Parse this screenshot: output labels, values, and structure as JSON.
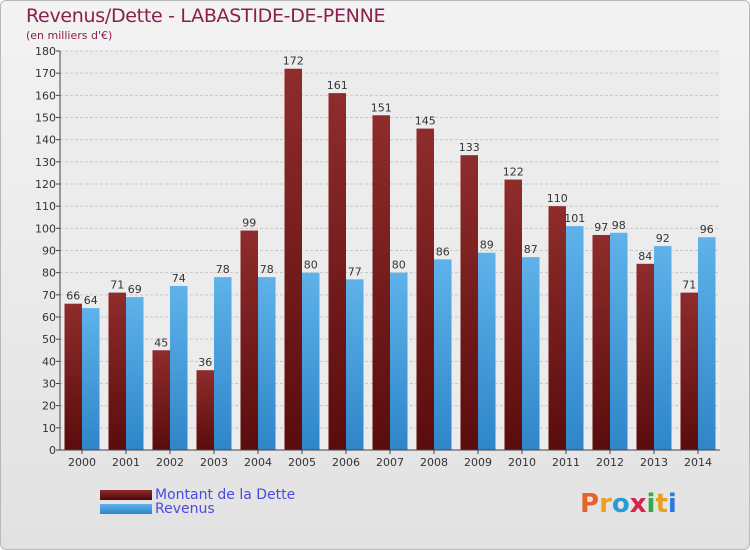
{
  "chart_data": {
    "type": "bar",
    "title": "Revenus/Dette - LABASTIDE-DE-PENNE",
    "subtitle": "(en milliers d'€)",
    "categories": [
      "2000",
      "2001",
      "2002",
      "2003",
      "2004",
      "2005",
      "2006",
      "2007",
      "2008",
      "2009",
      "2010",
      "2011",
      "2012",
      "2013",
      "2014"
    ],
    "series": [
      {
        "name": "Montant de la Dette",
        "color": "#7a1f1f",
        "values": [
          66,
          71,
          45,
          36,
          99,
          172,
          161,
          151,
          145,
          133,
          122,
          110,
          97,
          84,
          71
        ]
      },
      {
        "name": "Revenus",
        "color": "#4aa3e0",
        "values": [
          64,
          69,
          74,
          78,
          78,
          80,
          77,
          80,
          86,
          89,
          87,
          101,
          98,
          92,
          96
        ]
      }
    ],
    "ylim": [
      0,
      180
    ],
    "yticks": [
      0,
      10,
      20,
      30,
      40,
      50,
      60,
      70,
      80,
      90,
      100,
      110,
      120,
      130,
      140,
      150,
      160,
      170,
      180
    ],
    "grid": true,
    "legend_position": "bottom-left"
  },
  "logo": {
    "text": "Proxiti",
    "colors": [
      "#e8632a",
      "#f0a020",
      "#2a9ad8",
      "#d8224a",
      "#3aa84a",
      "#e8a020",
      "#2a7ad8"
    ]
  }
}
